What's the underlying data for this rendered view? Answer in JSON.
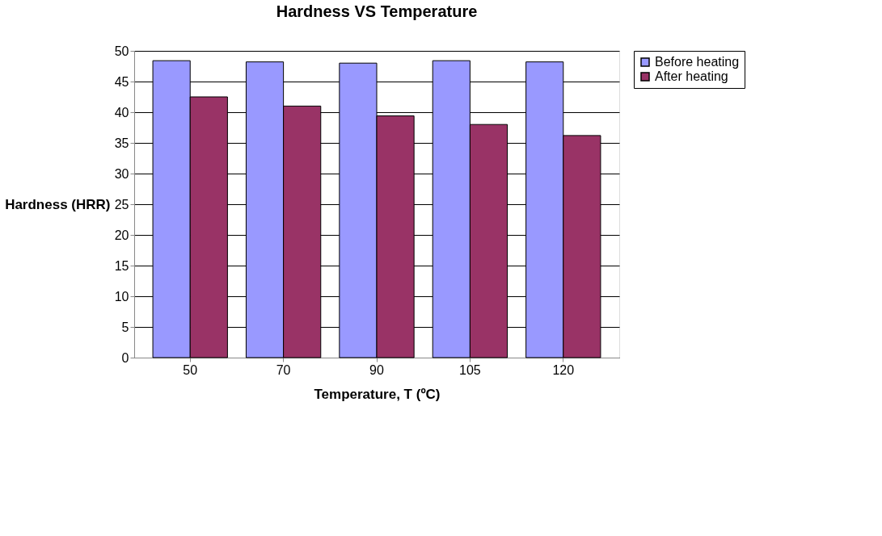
{
  "chart_data": {
    "type": "bar",
    "title": "Hardness VS Temperature",
    "xlabel": "Temperature, T (ºC)",
    "ylabel": "Hardness (HRR)",
    "categories": [
      "50",
      "70",
      "90",
      "105",
      "120"
    ],
    "series": [
      {
        "name": "Before heating",
        "color": "#9999ff",
        "values": [
          48.4,
          48.2,
          48.0,
          48.4,
          48.2
        ]
      },
      {
        "name": "After heating",
        "color": "#993366",
        "values": [
          42.5,
          41.0,
          39.4,
          38.0,
          36.2
        ]
      }
    ],
    "ylim": [
      0,
      50
    ],
    "yticks": [
      0,
      5,
      10,
      15,
      20,
      25,
      30,
      35,
      40,
      45,
      50
    ],
    "grid": "y",
    "legend": "right"
  }
}
